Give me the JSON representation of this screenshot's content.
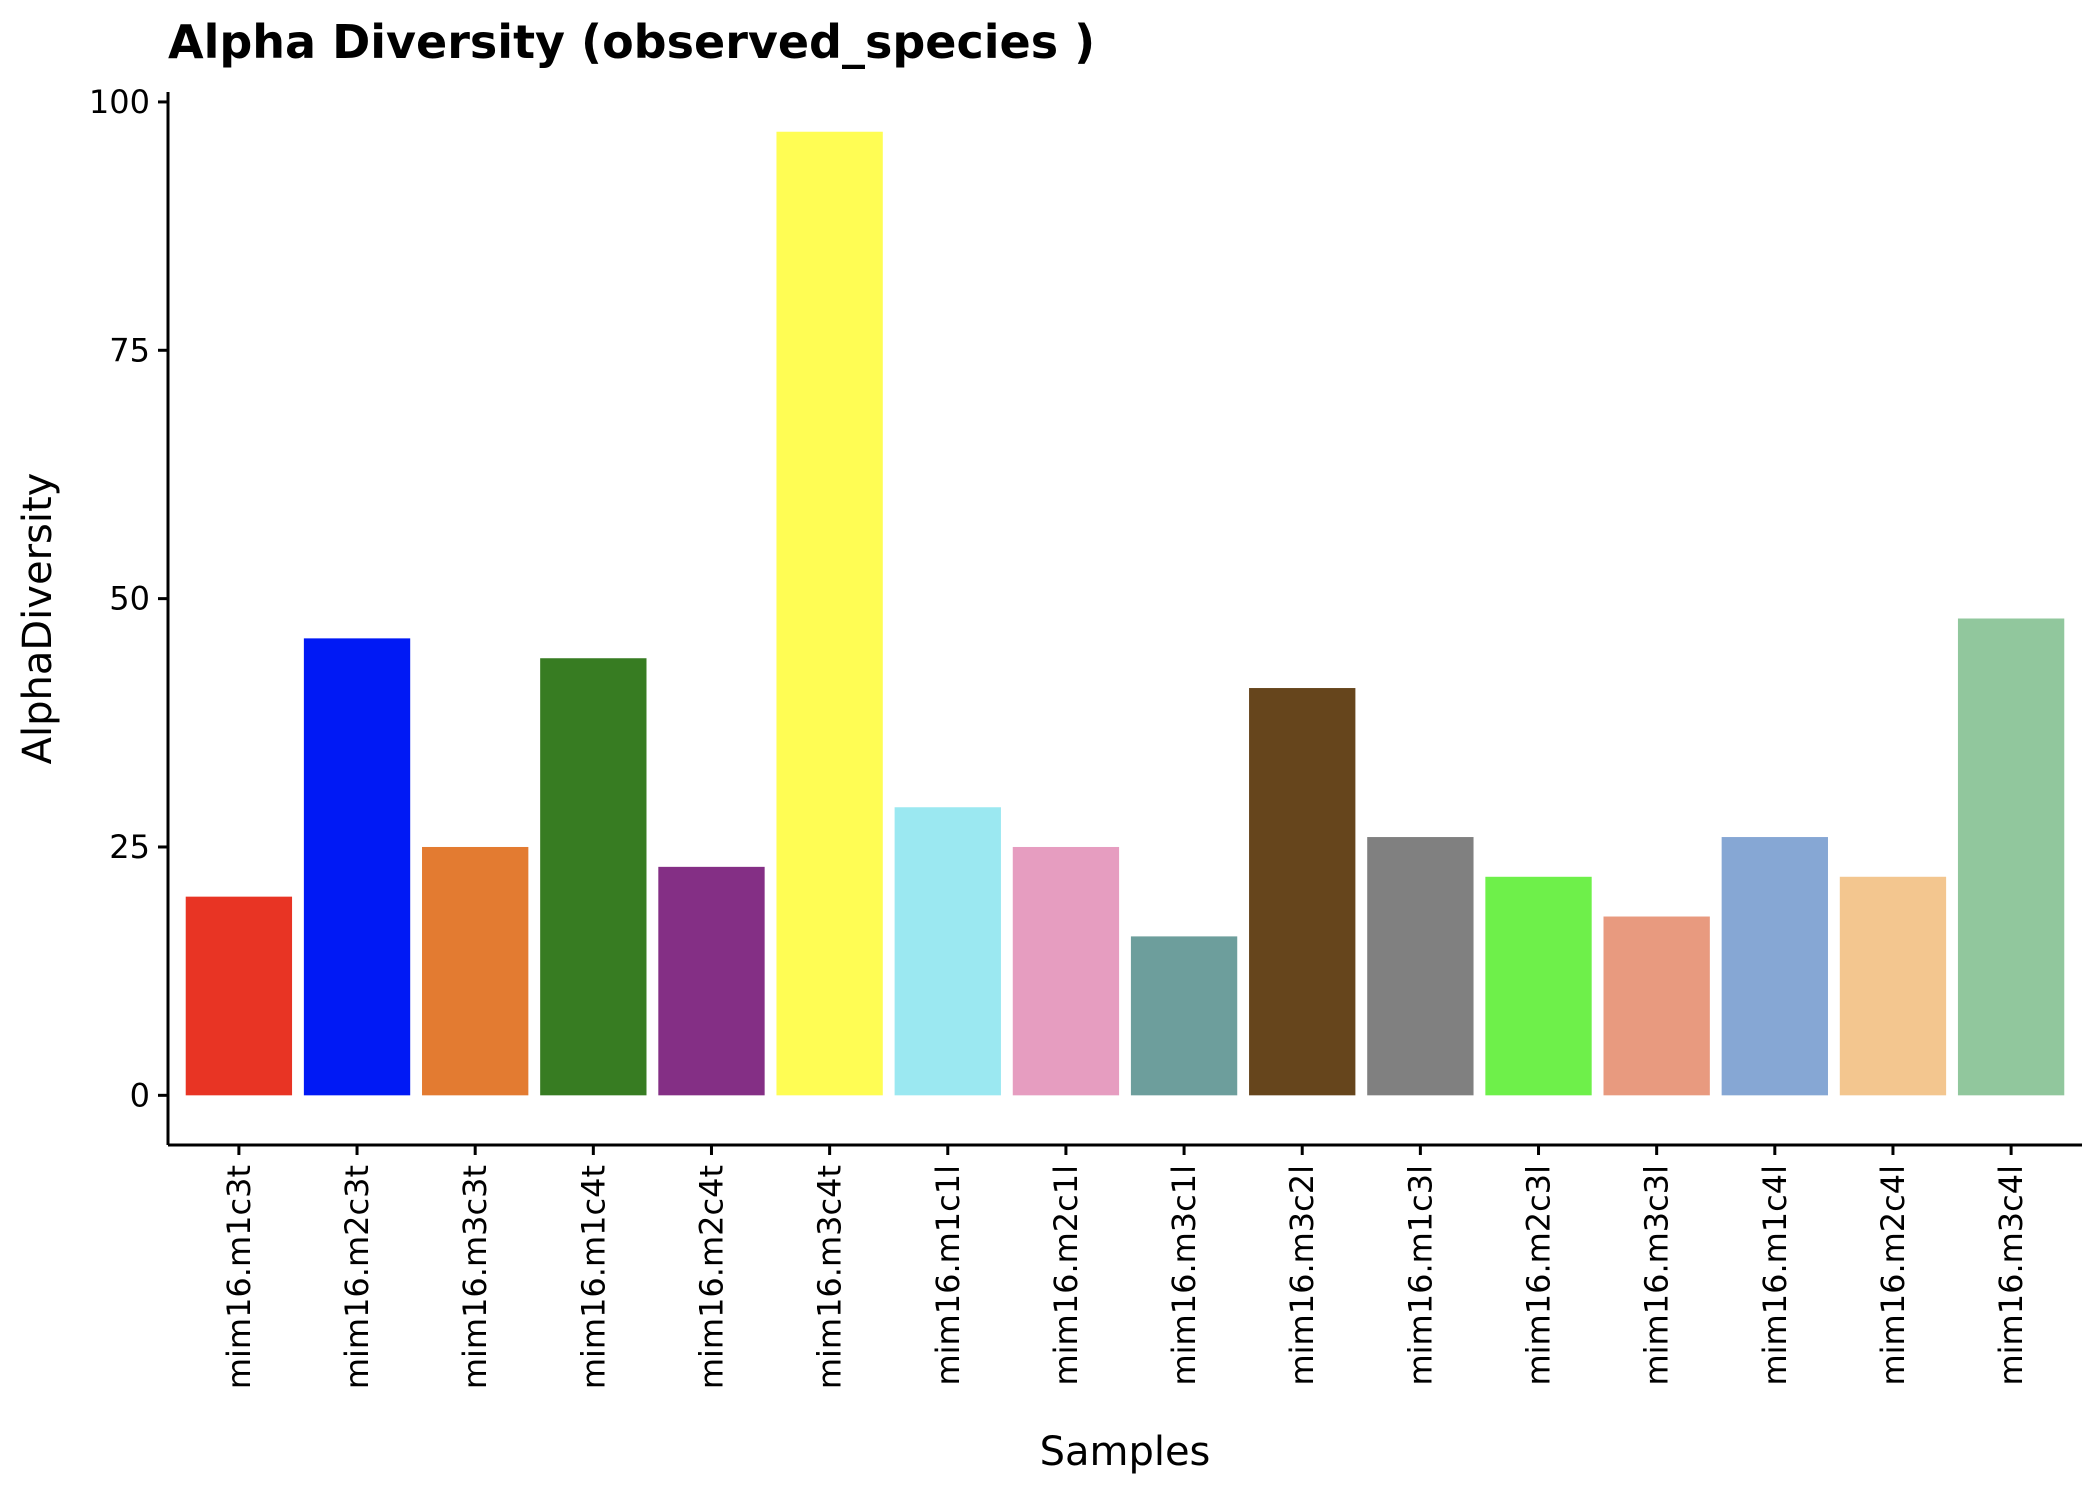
{
  "chart_data": {
    "type": "bar",
    "title": "Alpha Diversity (observed_species )",
    "xlabel": "Samples",
    "ylabel": "AlphaDiversity",
    "ylim": [
      -5,
      101
    ],
    "yticks": [
      0,
      25,
      50,
      75,
      100
    ],
    "grid": false,
    "legend": "none",
    "categories": [
      "mim16.m1c3t",
      "mim16.m2c3t",
      "mim16.m3c3t",
      "mim16.m1c4t",
      "mim16.m2c4t",
      "mim16.m3c4t",
      "mim16.m1c1l",
      "mim16.m2c1l",
      "mim16.m3c1l",
      "mim16.m3c2l",
      "mim16.m1c3l",
      "mim16.m2c3l",
      "mim16.m3c3l",
      "mim16.m1c4l",
      "mim16.m2c4l",
      "mim16.m3c4l"
    ],
    "values": [
      20,
      46,
      25,
      44,
      23,
      97,
      29,
      25,
      16,
      41,
      26,
      22,
      18,
      26,
      22,
      48
    ],
    "colors": [
      "#E83424",
      "#0019F5",
      "#E37B31",
      "#377C22",
      "#842F85",
      "#FFFD54",
      "#9BE8F1",
      "#E69DC0",
      "#6D9E9C",
      "#66451C",
      "#808080",
      "#6EF04A",
      "#E89A7F",
      "#86A7D4",
      "#F3C68F",
      "#91C79D"
    ]
  }
}
